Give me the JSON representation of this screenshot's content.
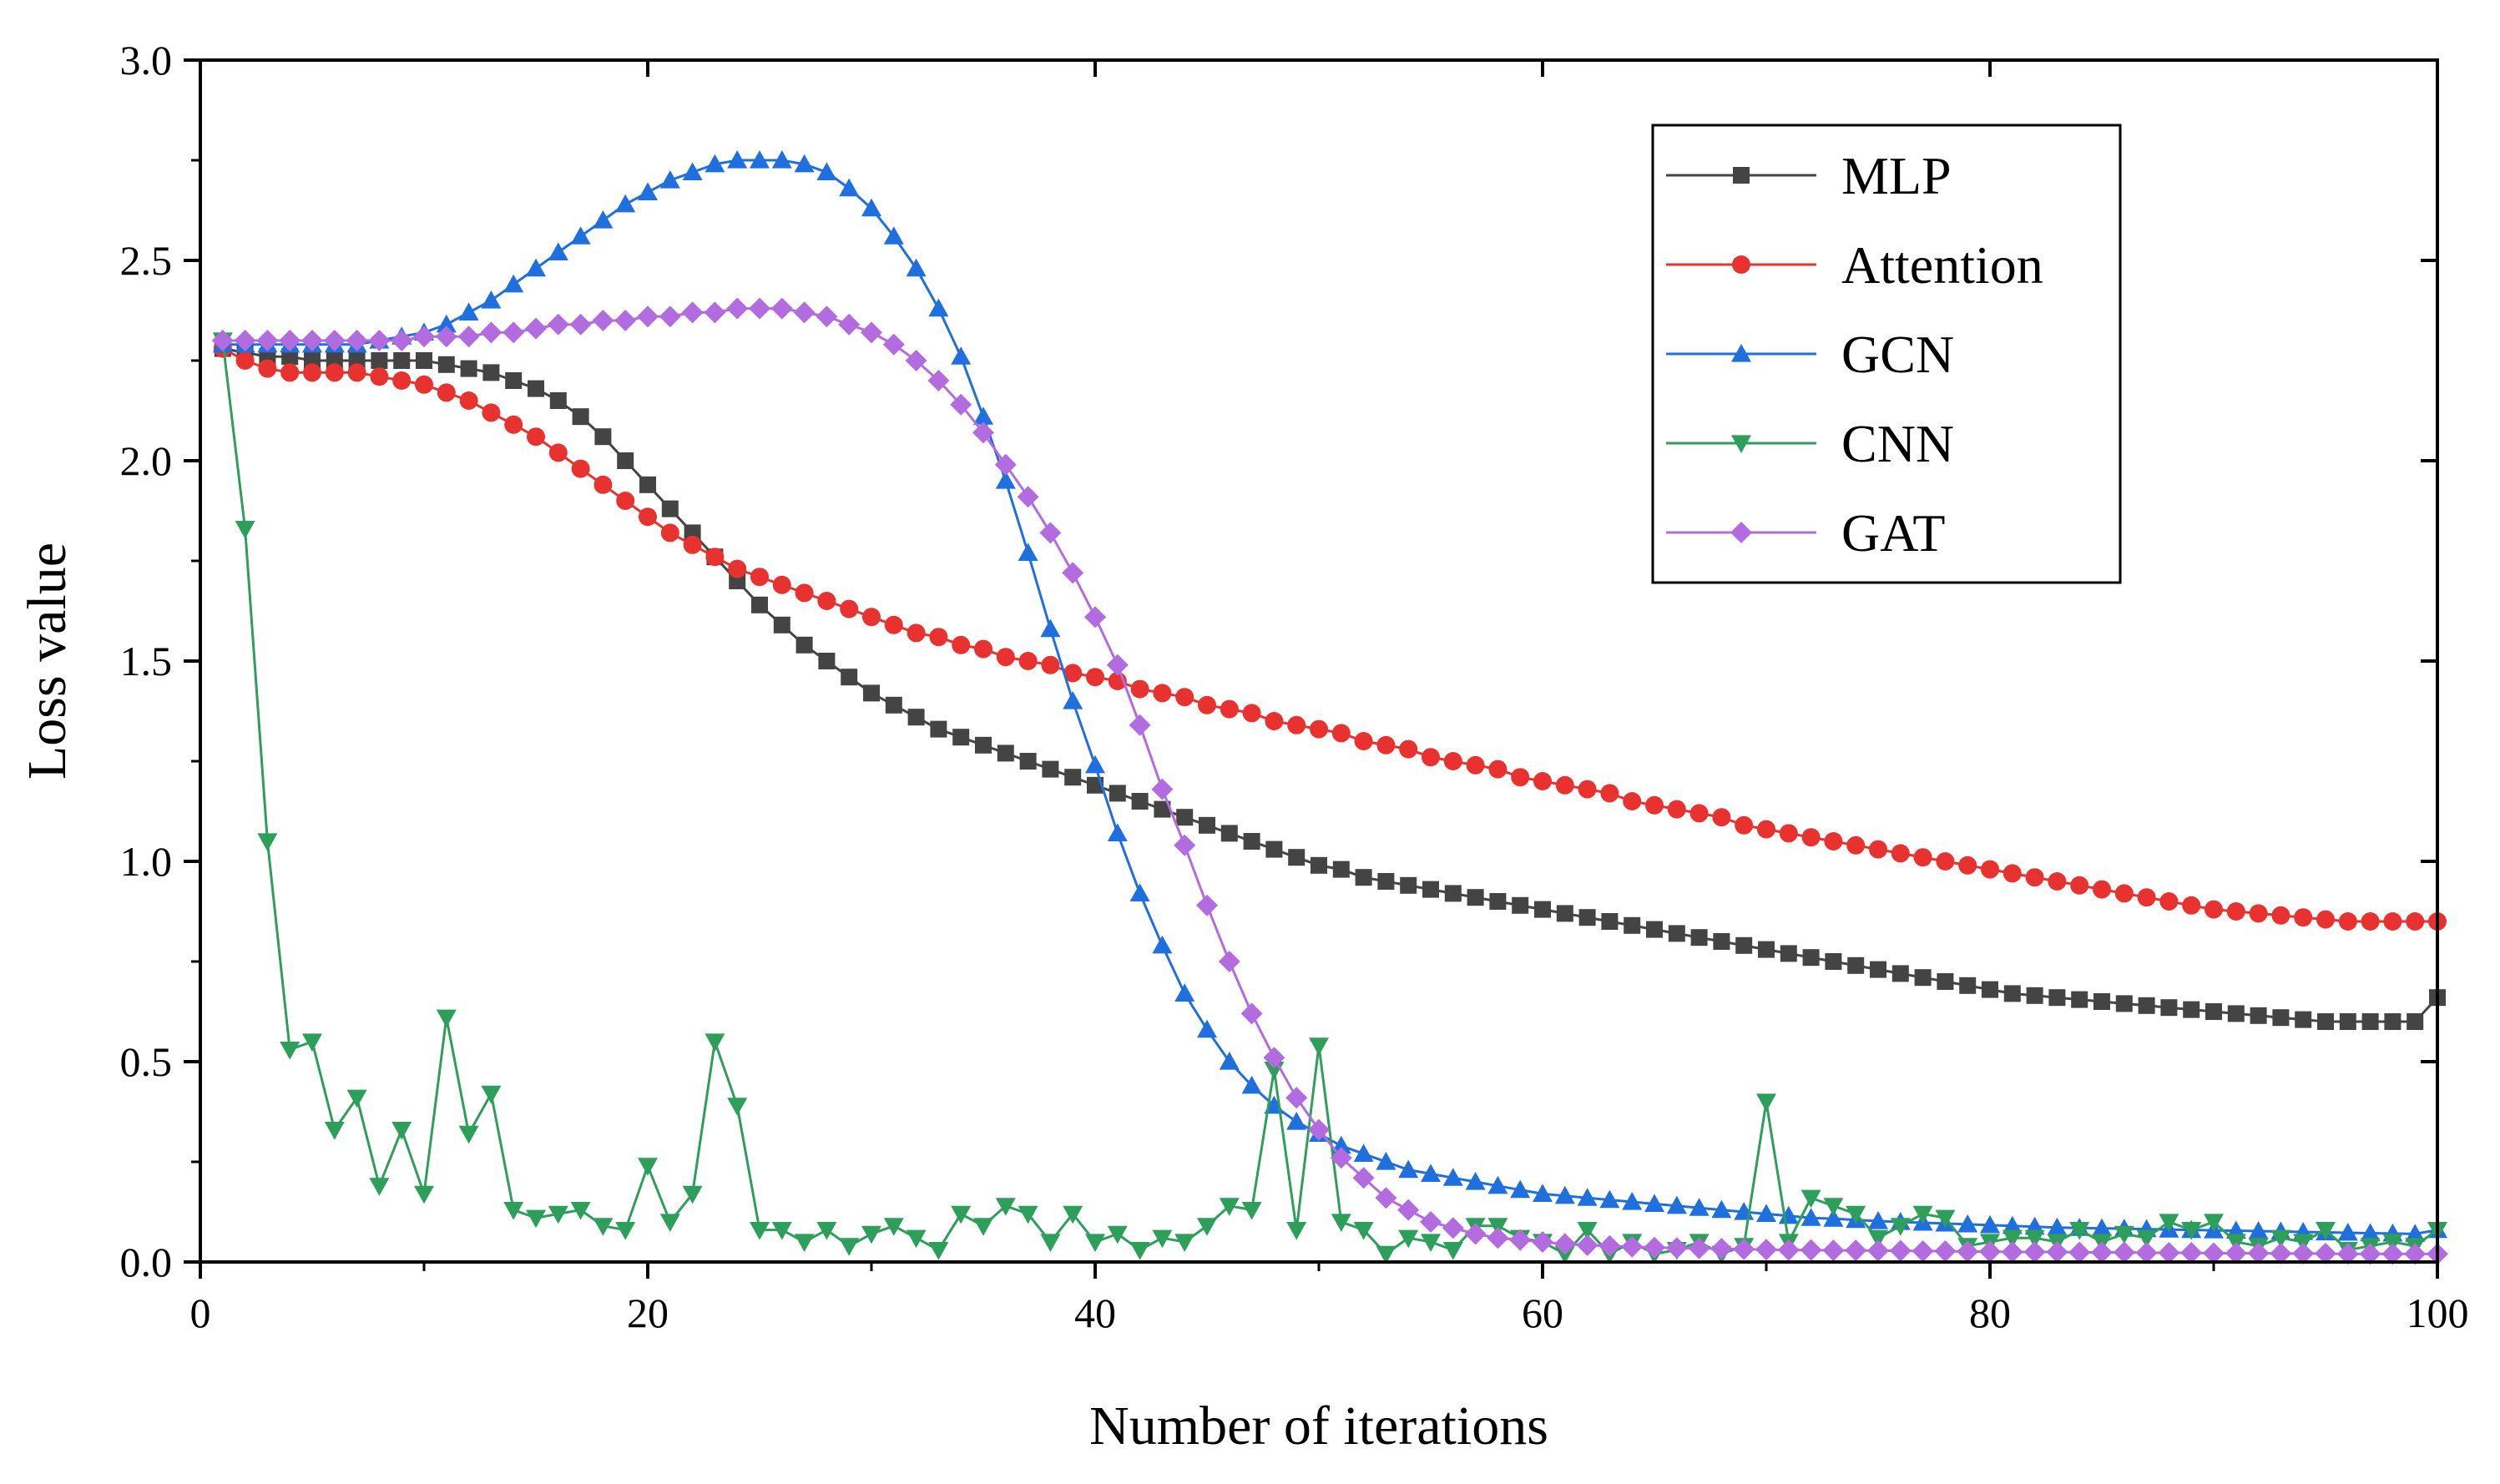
{
  "chart_data": {
    "type": "line",
    "xlabel": "Number of iterations",
    "ylabel": "Loss value",
    "xlim": [
      0,
      100
    ],
    "ylim": [
      0,
      3.0
    ],
    "x_ticks": [
      "0",
      "20",
      "40",
      "60",
      "80",
      "100"
    ],
    "y_ticks": [
      "0.0",
      "0.5",
      "1.0",
      "1.5",
      "2.0",
      "2.5",
      "3.0"
    ],
    "x_tick_values": [
      0,
      20,
      40,
      60,
      80,
      100
    ],
    "y_tick_values": [
      0,
      0.5,
      1.0,
      1.5,
      2.0,
      2.5,
      3.0
    ],
    "grid": false,
    "legend_position": "top-right",
    "series": [
      {
        "name": "MLP",
        "color": "#444444",
        "marker": "square",
        "values": [
          2.28,
          2.27,
          2.26,
          2.26,
          2.25,
          2.25,
          2.25,
          2.25,
          2.25,
          2.25,
          2.24,
          2.23,
          2.22,
          2.2,
          2.18,
          2.15,
          2.11,
          2.06,
          2.0,
          1.94,
          1.88,
          1.82,
          1.76,
          1.7,
          1.64,
          1.59,
          1.54,
          1.5,
          1.46,
          1.42,
          1.39,
          1.36,
          1.33,
          1.31,
          1.29,
          1.27,
          1.25,
          1.23,
          1.21,
          1.19,
          1.17,
          1.15,
          1.13,
          1.11,
          1.09,
          1.07,
          1.05,
          1.03,
          1.01,
          0.99,
          0.98,
          0.96,
          0.95,
          0.94,
          0.93,
          0.92,
          0.91,
          0.9,
          0.89,
          0.88,
          0.87,
          0.86,
          0.85,
          0.84,
          0.83,
          0.82,
          0.81,
          0.8,
          0.79,
          0.78,
          0.77,
          0.76,
          0.75,
          0.74,
          0.73,
          0.72,
          0.71,
          0.7,
          0.69,
          0.68,
          0.67,
          0.665,
          0.66,
          0.655,
          0.65,
          0.645,
          0.64,
          0.635,
          0.63,
          0.625,
          0.62,
          0.615,
          0.61,
          0.605,
          0.6,
          0.6,
          0.6,
          0.6,
          0.6,
          0.66
        ]
      },
      {
        "name": "Attention",
        "color": "#e8322f",
        "marker": "circle",
        "values": [
          2.28,
          2.25,
          2.23,
          2.22,
          2.22,
          2.22,
          2.22,
          2.21,
          2.2,
          2.19,
          2.17,
          2.15,
          2.12,
          2.09,
          2.06,
          2.02,
          1.98,
          1.94,
          1.9,
          1.86,
          1.82,
          1.79,
          1.76,
          1.73,
          1.71,
          1.69,
          1.67,
          1.65,
          1.63,
          1.61,
          1.59,
          1.57,
          1.56,
          1.54,
          1.53,
          1.51,
          1.5,
          1.49,
          1.47,
          1.46,
          1.45,
          1.43,
          1.42,
          1.41,
          1.39,
          1.38,
          1.37,
          1.35,
          1.34,
          1.33,
          1.32,
          1.3,
          1.29,
          1.28,
          1.26,
          1.25,
          1.24,
          1.23,
          1.21,
          1.2,
          1.19,
          1.18,
          1.17,
          1.15,
          1.14,
          1.13,
          1.12,
          1.11,
          1.09,
          1.08,
          1.07,
          1.06,
          1.05,
          1.04,
          1.03,
          1.02,
          1.01,
          1.0,
          0.99,
          0.98,
          0.97,
          0.96,
          0.95,
          0.94,
          0.93,
          0.92,
          0.91,
          0.9,
          0.89,
          0.88,
          0.875,
          0.87,
          0.865,
          0.86,
          0.855,
          0.85,
          0.85,
          0.85,
          0.85,
          0.85
        ]
      },
      {
        "name": "GCN",
        "color": "#1f6fde",
        "marker": "triangle-up",
        "values": [
          2.29,
          2.29,
          2.29,
          2.29,
          2.29,
          2.29,
          2.29,
          2.3,
          2.31,
          2.32,
          2.34,
          2.37,
          2.4,
          2.44,
          2.48,
          2.52,
          2.56,
          2.6,
          2.64,
          2.67,
          2.7,
          2.72,
          2.74,
          2.75,
          2.75,
          2.75,
          2.74,
          2.72,
          2.68,
          2.63,
          2.56,
          2.48,
          2.38,
          2.26,
          2.11,
          1.95,
          1.77,
          1.58,
          1.4,
          1.24,
          1.07,
          0.92,
          0.79,
          0.67,
          0.58,
          0.5,
          0.44,
          0.39,
          0.35,
          0.32,
          0.29,
          0.27,
          0.25,
          0.23,
          0.22,
          0.21,
          0.2,
          0.19,
          0.18,
          0.17,
          0.165,
          0.16,
          0.155,
          0.15,
          0.145,
          0.14,
          0.135,
          0.13,
          0.125,
          0.12,
          0.115,
          0.11,
          0.108,
          0.105,
          0.102,
          0.1,
          0.098,
          0.096,
          0.094,
          0.092,
          0.09,
          0.088,
          0.086,
          0.085,
          0.084,
          0.083,
          0.082,
          0.081,
          0.08,
          0.079,
          0.078,
          0.077,
          0.076,
          0.075,
          0.074,
          0.073,
          0.072,
          0.071,
          0.07,
          0.08
        ]
      },
      {
        "name": "CNN",
        "color": "#2e9e5b",
        "marker": "triangle-down",
        "values": [
          2.3,
          1.83,
          1.05,
          0.53,
          0.55,
          0.33,
          0.41,
          0.19,
          0.33,
          0.17,
          0.61,
          0.32,
          0.42,
          0.13,
          0.11,
          0.12,
          0.13,
          0.09,
          0.08,
          0.24,
          0.1,
          0.17,
          0.55,
          0.39,
          0.08,
          0.08,
          0.05,
          0.08,
          0.04,
          0.07,
          0.09,
          0.06,
          0.03,
          0.12,
          0.09,
          0.14,
          0.12,
          0.05,
          0.12,
          0.05,
          0.07,
          0.03,
          0.06,
          0.05,
          0.09,
          0.14,
          0.13,
          0.48,
          0.08,
          0.54,
          0.1,
          0.08,
          0.02,
          0.06,
          0.05,
          0.03,
          0.09,
          0.09,
          0.06,
          0.05,
          0.02,
          0.08,
          0.02,
          0.05,
          0.02,
          0.03,
          0.05,
          0.02,
          0.04,
          0.4,
          0.05,
          0.16,
          0.14,
          0.12,
          0.06,
          0.09,
          0.12,
          0.11,
          0.04,
          0.05,
          0.06,
          0.06,
          0.05,
          0.08,
          0.05,
          0.07,
          0.06,
          0.1,
          0.08,
          0.1,
          0.05,
          0.04,
          0.06,
          0.05,
          0.08,
          0.03,
          0.04,
          0.05,
          0.04,
          0.08
        ]
      },
      {
        "name": "GAT",
        "color": "#b36be0",
        "marker": "diamond",
        "values": [
          2.3,
          2.3,
          2.3,
          2.3,
          2.3,
          2.3,
          2.3,
          2.3,
          2.3,
          2.31,
          2.31,
          2.31,
          2.32,
          2.32,
          2.33,
          2.34,
          2.34,
          2.35,
          2.35,
          2.36,
          2.36,
          2.37,
          2.37,
          2.38,
          2.38,
          2.38,
          2.37,
          2.36,
          2.34,
          2.32,
          2.29,
          2.25,
          2.2,
          2.14,
          2.07,
          1.99,
          1.91,
          1.82,
          1.72,
          1.61,
          1.49,
          1.34,
          1.18,
          1.04,
          0.89,
          0.75,
          0.62,
          0.51,
          0.41,
          0.33,
          0.26,
          0.21,
          0.16,
          0.13,
          0.1,
          0.085,
          0.07,
          0.06,
          0.055,
          0.05,
          0.045,
          0.042,
          0.04,
          0.038,
          0.036,
          0.035,
          0.034,
          0.033,
          0.032,
          0.031,
          0.03,
          0.03,
          0.029,
          0.029,
          0.028,
          0.028,
          0.027,
          0.027,
          0.026,
          0.026,
          0.025,
          0.025,
          0.025,
          0.024,
          0.024,
          0.024,
          0.023,
          0.023,
          0.023,
          0.022,
          0.022,
          0.022,
          0.021,
          0.021,
          0.021,
          0.02,
          0.02,
          0.02,
          0.02,
          0.02
        ]
      }
    ]
  }
}
